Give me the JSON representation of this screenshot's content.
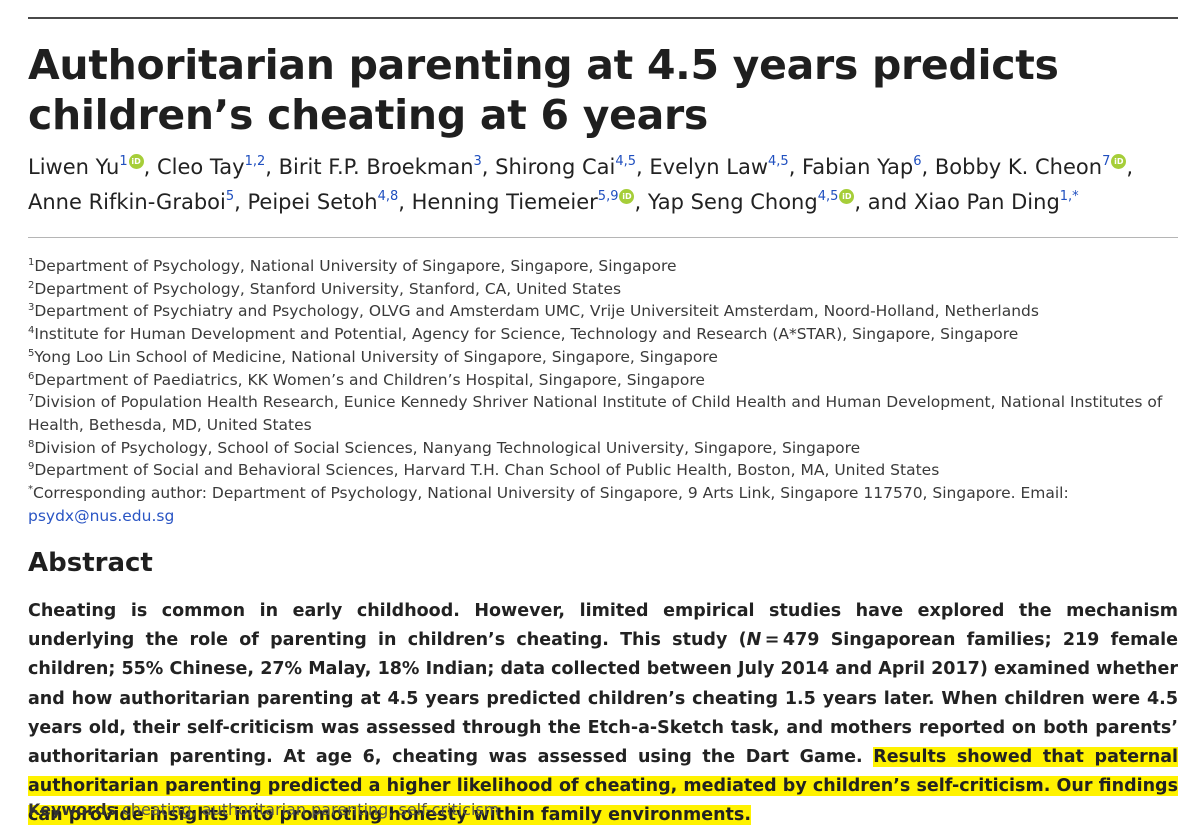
{
  "title": "Authoritarian parenting at 4.5 years predicts children’s cheating at 6 years",
  "authors": {
    "a1": {
      "name": "Liwen Yu",
      "sup": "1"
    },
    "a2": {
      "name": "Cleo Tay",
      "sup": "1,2"
    },
    "a3": {
      "name": "Birit F.P. Broekman",
      "sup": "3"
    },
    "a4": {
      "name": "Shirong Cai",
      "sup": "4,5"
    },
    "a5": {
      "name": "Evelyn Law",
      "sup": "4,5"
    },
    "a6": {
      "name": "Fabian Yap",
      "sup": "6"
    },
    "a7": {
      "name": "Bobby K. Cheon",
      "sup": "7"
    },
    "a8": {
      "name": "Anne Rifkin-Graboi",
      "sup": "5"
    },
    "a9": {
      "name": "Peipei Setoh",
      "sup": "4,8"
    },
    "a10": {
      "name": "Henning Tiemeier",
      "sup": "5,9"
    },
    "a11": {
      "name": "Yap Seng Chong",
      "sup": "4,5"
    },
    "a12": {
      "name": "Xiao Pan Ding",
      "sup": "1,*"
    },
    "connector": "and",
    "orcid_label": "iD"
  },
  "affiliations": {
    "f1": {
      "sup": "1",
      "text": "Department of Psychology, National University of Singapore, Singapore, Singapore"
    },
    "f2": {
      "sup": "2",
      "text": "Department of Psychology, Stanford University, Stanford, CA, United States"
    },
    "f3": {
      "sup": "3",
      "text": "Department of Psychiatry and Psychology, OLVG and Amsterdam UMC, Vrije Universiteit Amsterdam, Noord-Holland, Netherlands"
    },
    "f4": {
      "sup": "4",
      "text": "Institute for Human Development and Potential, Agency for Science, Technology and Research (A*STAR), Singapore, Singapore"
    },
    "f5": {
      "sup": "5",
      "text": "Yong Loo Lin School of Medicine, National University of Singapore, Singapore, Singapore"
    },
    "f6": {
      "sup": "6",
      "text": "Department of Paediatrics, KK Women’s and Children’s Hospital, Singapore, Singapore"
    },
    "f7": {
      "sup": "7",
      "text": "Division of Population Health Research, Eunice Kennedy Shriver National Institute of Child Health and Human Development, National Institutes of Health, Bethesda, MD, United States"
    },
    "f8": {
      "sup": "8",
      "text": "Division of Psychology, School of Social Sciences, Nanyang Technological University, Singapore, Singapore"
    },
    "f9": {
      "sup": "9",
      "text": "Department of Social and Behavioral Sciences, Harvard T.H. Chan School of Public Health, Boston, MA, United States"
    },
    "corresponding": {
      "sup": "*",
      "text": "Corresponding author: Department of Psychology, National University of Singapore, 9 Arts Link, Singapore 117570, Singapore. Email: ",
      "email": "psydx@nus.edu.sg"
    }
  },
  "abstract": {
    "heading": "Abstract",
    "text_part1": "Cheating is common in early childhood. However, limited empirical studies have explored the mechanism underlying the role of parenting in children’s cheating. This study (",
    "n_symbol": "N",
    "text_part2": " = 479 Singaporean families; 219 female children; 55% Chinese, 27% Malay, 18% Indian; data collected between July 2014 and April 2017) examined whether and how authoritarian parenting at 4.5 years predicted children’s cheating 1.5 years later. When children were 4.5 years old, their self-criticism was assessed through the Etch-a-Sketch task, and mothers reported on both parents’ authoritarian parenting. At age 6, cheating was assessed using the Dart Game. ",
    "highlighted": "Results showed that paternal authoritarian parenting predicted a higher likelihood of cheating, mediated by children’s self-criticism. Our findings can provide insights into promoting honesty within family environments."
  },
  "keywords": {
    "label": "Keywords",
    "values": "cheating, authoritarian parenting, self-criticism"
  },
  "colors": {
    "highlight": "#fff200",
    "link": "#2a55c4",
    "orcid": "#a6ce39"
  }
}
